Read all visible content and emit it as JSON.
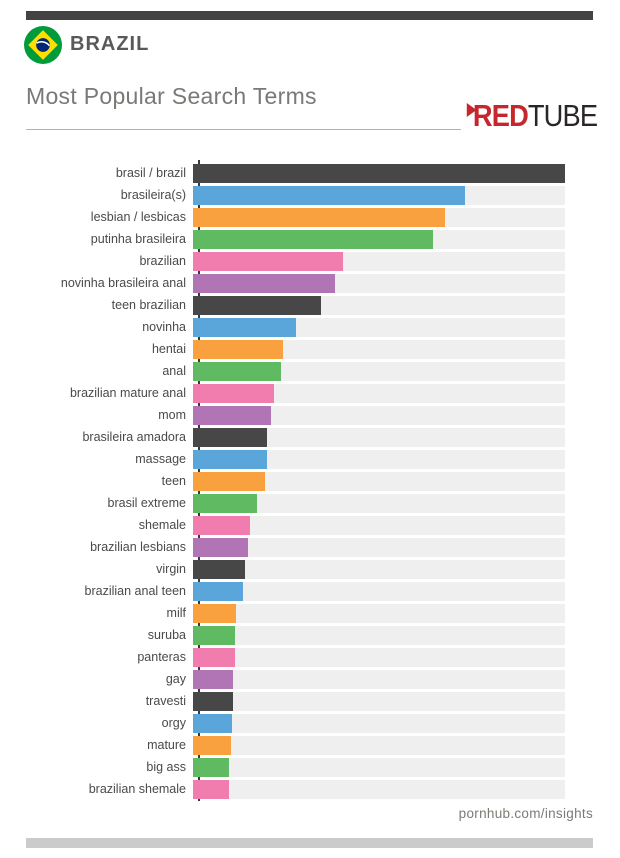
{
  "header": {
    "country": "BRAZIL",
    "title": "Most Popular Search Terms",
    "brand_red": "RED",
    "brand_tube": "TUBE"
  },
  "footer": {
    "site": "pornhub.com/insights"
  },
  "colors": {
    "topbar": "#434343",
    "bottombar": "#cbcbcb",
    "axis": "#3a3a3a",
    "track": "#efefef",
    "title_text": "#7b7875",
    "label_text": "#4a4a4a",
    "brand_red": "#c5272d",
    "brand_dark": "#2a2627",
    "flag_green": "#009b3a",
    "flag_yellow": "#fedf00",
    "flag_blue": "#002776"
  },
  "chart_data": {
    "type": "bar",
    "orientation": "horizontal",
    "title": "Most Popular Search Terms",
    "xlabel": "",
    "ylabel": "",
    "grid": false,
    "legend": false,
    "value_unit": "percent_of_longest_bar",
    "xlim": [
      0,
      100
    ],
    "categories": [
      "brasil / brazil",
      "brasileira(s)",
      "lesbian / lesbicas",
      "putinha brasileira",
      "brazilian",
      "novinha brasileira anal",
      "teen brazilian",
      "novinha",
      "hentai",
      "anal",
      "brazilian mature anal",
      "mom",
      "brasileira amadora",
      "massage",
      "teen",
      "brasil extreme",
      "shemale",
      "brazilian lesbians",
      "virgin",
      "brazilian anal teen",
      "milf",
      "suruba",
      "panteras",
      "gay",
      "travesti",
      "orgy",
      "mature",
      "big ass",
      "brazilian shemale"
    ],
    "values": [
      100,
      73,
      67.8,
      64.4,
      40.2,
      38.3,
      34.3,
      27.7,
      24.1,
      23.6,
      21.7,
      21.1,
      19.8,
      19.8,
      19.3,
      17.1,
      15.4,
      14.7,
      14,
      13.5,
      11.5,
      11.3,
      11.3,
      10.8,
      10.7,
      10.4,
      10.1,
      9.7,
      9.7
    ],
    "palette": [
      "#474747",
      "#5aa5da",
      "#f8a13e",
      "#5fba61",
      "#f07dae",
      "#b175b5"
    ],
    "bar_colors": [
      "#474747",
      "#5aa5da",
      "#f8a13e",
      "#5fba61",
      "#f07dae",
      "#b175b5",
      "#474747",
      "#5aa5da",
      "#f8a13e",
      "#5fba61",
      "#f07dae",
      "#b175b5",
      "#474747",
      "#5aa5da",
      "#f8a13e",
      "#5fba61",
      "#f07dae",
      "#b175b5",
      "#474747",
      "#5aa5da",
      "#f8a13e",
      "#5fba61",
      "#f07dae",
      "#b175b5",
      "#474747",
      "#5aa5da",
      "#f8a13e",
      "#5fba61",
      "#f07dae"
    ],
    "track_color": "#efefef"
  }
}
